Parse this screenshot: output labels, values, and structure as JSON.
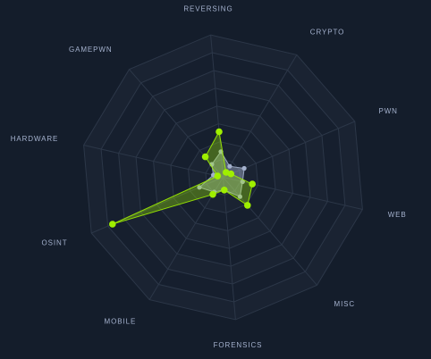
{
  "chart_data": {
    "type": "radar",
    "axes": [
      "REVERSING",
      "CRYPTO",
      "PWN",
      "WEB",
      "MISC",
      "FORENSICS",
      "MOBILE",
      "OSINT",
      "HARDWARE",
      "GAMEPWN"
    ],
    "rmax": 100,
    "rings": 8,
    "grid": true,
    "legend": "none",
    "series": [
      {
        "color": "#9fef00",
        "fill": "#9fef00",
        "values": [
          32,
          4,
          6,
          21,
          26,
          9,
          14,
          84,
          4,
          19
        ]
      },
      {
        "color": "#a4b1cd",
        "fill": "#a4b1cd",
        "values": [
          18,
          9,
          16,
          14,
          18,
          9,
          12,
          18,
          7,
          12
        ]
      }
    ],
    "colors": {
      "background": "#141d2b",
      "grid_band_a": "#1a2332",
      "grid_band_b": "#161f2e",
      "grid_line": "#2c3748",
      "axis_line": "#2c3748",
      "label": "#a4b1cd"
    }
  }
}
